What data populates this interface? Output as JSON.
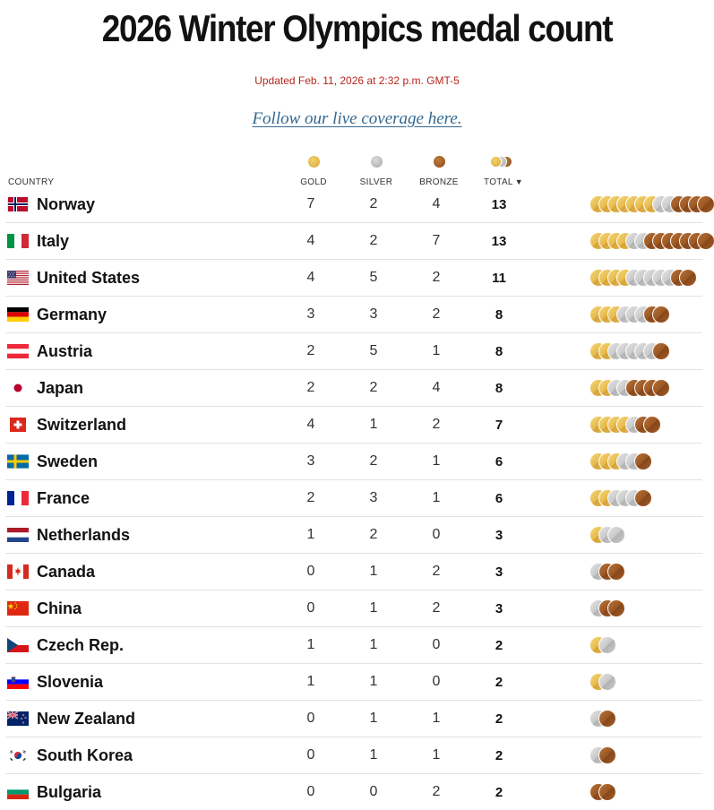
{
  "page": {
    "title": "2026 Winter Olympics medal count",
    "updated": "Updated Feb. 11, 2026 at 2:32 p.m. GMT-5",
    "follow_link": "Follow our live coverage here."
  },
  "header": {
    "country": "COUNTRY",
    "gold": "GOLD",
    "silver": "SILVER",
    "bronze": "BRONZE",
    "total": "TOTAL",
    "sort_indicator": "▼"
  },
  "colors": {
    "gold": "#e2b047",
    "silver": "#bdbdbd",
    "bronze": "#9a5622",
    "updated_text": "#b7261d",
    "link": "#326891"
  },
  "rows": [
    {
      "country": "Norway",
      "flag": "norway-flag",
      "gold": 7,
      "silver": 2,
      "bronze": 4,
      "total": 13
    },
    {
      "country": "Italy",
      "flag": "italy-flag",
      "gold": 4,
      "silver": 2,
      "bronze": 7,
      "total": 13
    },
    {
      "country": "United States",
      "flag": "united-states-flag",
      "gold": 4,
      "silver": 5,
      "bronze": 2,
      "total": 11
    },
    {
      "country": "Germany",
      "flag": "germany-flag",
      "gold": 3,
      "silver": 3,
      "bronze": 2,
      "total": 8
    },
    {
      "country": "Austria",
      "flag": "austria-flag",
      "gold": 2,
      "silver": 5,
      "bronze": 1,
      "total": 8
    },
    {
      "country": "Japan",
      "flag": "japan-flag",
      "gold": 2,
      "silver": 2,
      "bronze": 4,
      "total": 8
    },
    {
      "country": "Switzerland",
      "flag": "switzerland-flag",
      "gold": 4,
      "silver": 1,
      "bronze": 2,
      "total": 7
    },
    {
      "country": "Sweden",
      "flag": "sweden-flag",
      "gold": 3,
      "silver": 2,
      "bronze": 1,
      "total": 6
    },
    {
      "country": "France",
      "flag": "france-flag",
      "gold": 2,
      "silver": 3,
      "bronze": 1,
      "total": 6
    },
    {
      "country": "Netherlands",
      "flag": "netherlands-flag",
      "gold": 1,
      "silver": 2,
      "bronze": 0,
      "total": 3
    },
    {
      "country": "Canada",
      "flag": "canada-flag",
      "gold": 0,
      "silver": 1,
      "bronze": 2,
      "total": 3
    },
    {
      "country": "China",
      "flag": "china-flag",
      "gold": 0,
      "silver": 1,
      "bronze": 2,
      "total": 3
    },
    {
      "country": "Czech Rep.",
      "flag": "czech-republic-flag",
      "gold": 1,
      "silver": 1,
      "bronze": 0,
      "total": 2
    },
    {
      "country": "Slovenia",
      "flag": "slovenia-flag",
      "gold": 1,
      "silver": 1,
      "bronze": 0,
      "total": 2
    },
    {
      "country": "New Zealand",
      "flag": "new-zealand-flag",
      "gold": 0,
      "silver": 1,
      "bronze": 1,
      "total": 2
    },
    {
      "country": "South Korea",
      "flag": "south-korea-flag",
      "gold": 0,
      "silver": 1,
      "bronze": 1,
      "total": 2
    },
    {
      "country": "Bulgaria",
      "flag": "bulgaria-flag",
      "gold": 0,
      "silver": 0,
      "bronze": 2,
      "total": 2
    }
  ]
}
